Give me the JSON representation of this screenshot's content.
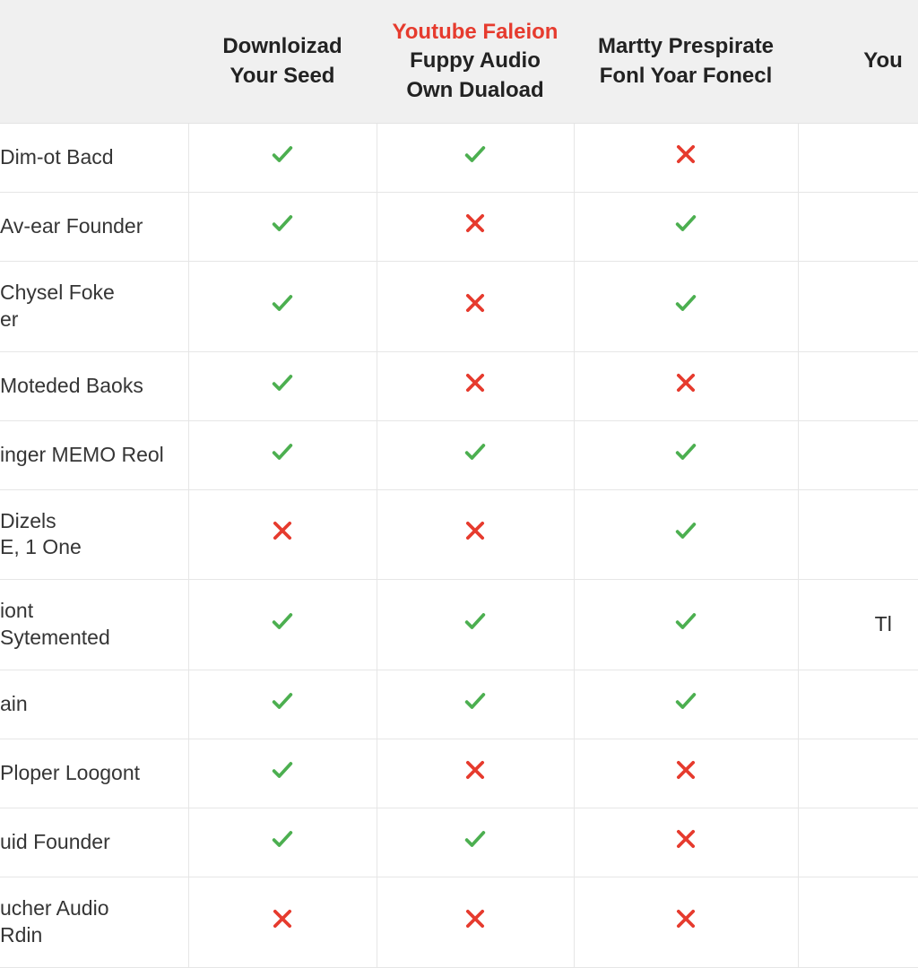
{
  "table": {
    "type": "comparison-table",
    "colors": {
      "check": "#4caf50",
      "cross": "#e63b2e",
      "header_bg": "#f0f0f0",
      "border": "#e6e6e6",
      "text": "#2a2a2a",
      "highlight_text": "#e63b2e"
    },
    "columns": [
      {
        "line1": "",
        "line2": "",
        "highlight": false
      },
      {
        "line1": "Downloizad",
        "line2": "Your Seed",
        "highlight": false
      },
      {
        "line1": "Youtube Faleion",
        "line2": "Fuppy Audio Own Duaload",
        "highlight": true
      },
      {
        "line1": "Martty Prespirate",
        "line2": "Fonl Yoar Fonecl",
        "highlight": false
      },
      {
        "line1": "You",
        "line2": "",
        "highlight": false
      }
    ],
    "rows": [
      {
        "label": "Dim-ot Bacd",
        "cells": [
          "check",
          "check",
          "cross",
          ""
        ]
      },
      {
        "label": "Av-ear Founder",
        "cells": [
          "check",
          "cross",
          "check",
          ""
        ]
      },
      {
        "label": "Chysel Foke\ner",
        "cells": [
          "check",
          "cross",
          "check",
          ""
        ]
      },
      {
        "label": "Moteded Baoks",
        "cells": [
          "check",
          "cross",
          "cross",
          ""
        ]
      },
      {
        "label": "inger MEMO Reol",
        "cells": [
          "check",
          "check",
          "check",
          ""
        ]
      },
      {
        "label": "Dizels\nE, 1 One",
        "cells": [
          "cross",
          "cross",
          "check",
          ""
        ]
      },
      {
        "label": "iont\nSytemented",
        "cells": [
          "check",
          "check",
          "check",
          "text:Tl"
        ]
      },
      {
        "label": "ain",
        "cells": [
          "check",
          "check",
          "check",
          ""
        ]
      },
      {
        "label": "Ploper Loogont",
        "cells": [
          "check",
          "cross",
          "cross",
          ""
        ]
      },
      {
        "label": "uid Founder",
        "cells": [
          "check",
          "check",
          "cross",
          ""
        ]
      },
      {
        "label": "ucher Audio\nRdin",
        "cells": [
          "cross",
          "cross",
          "cross",
          ""
        ]
      }
    ]
  }
}
